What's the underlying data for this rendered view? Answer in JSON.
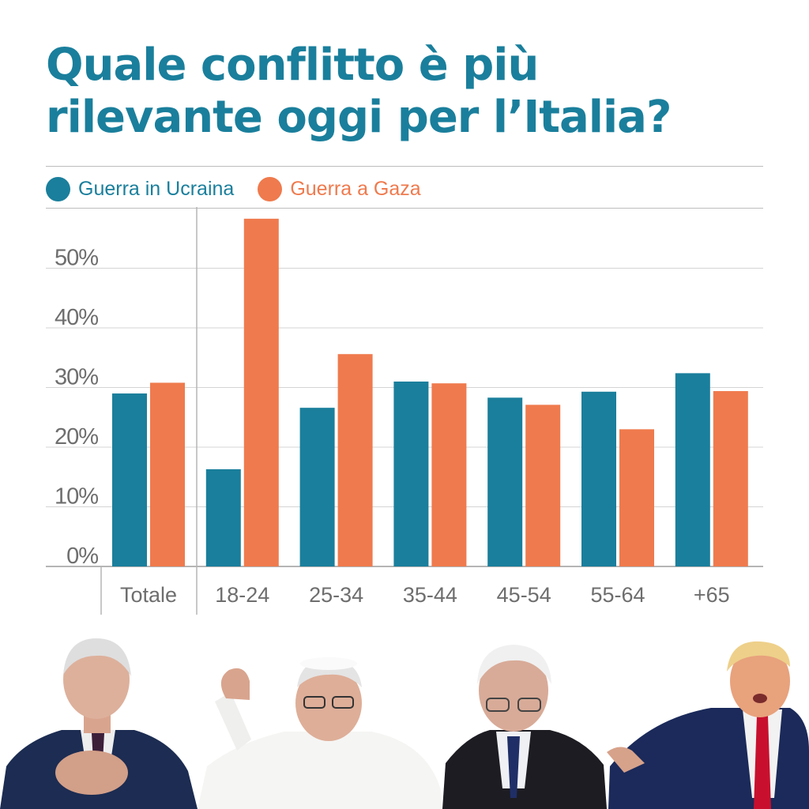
{
  "title_lines": [
    "Quale conflitto è più",
    "rilevante oggi per l’Italia?"
  ],
  "colors": {
    "title": "#1a7f9c",
    "ukraine": "#1a7f9c",
    "gaza": "#ef7a4d",
    "axis_text": "#6e6e6e",
    "grid": "#d4d4d4"
  },
  "chart_data": {
    "type": "bar",
    "title": "Quale conflitto è più rilevante oggi per l’Italia?",
    "xlabel": "",
    "ylabel": "",
    "categories": [
      "Totale",
      "18-24",
      "25-34",
      "35-44",
      "45-54",
      "55-64",
      "+65"
    ],
    "series": [
      {
        "name": "Guerra in Ucraina",
        "color": "#1a7f9c",
        "values": [
          29,
          16.3,
          26.6,
          31,
          28.3,
          29.3,
          32.4
        ]
      },
      {
        "name": "Guerra a Gaza",
        "color": "#ef7a4d",
        "values": [
          30.8,
          58.3,
          35.6,
          30.7,
          27.1,
          23,
          29.4
        ]
      }
    ],
    "y_ticks": [
      "0%",
      "10%",
      "20%",
      "30%",
      "40%",
      "50%"
    ],
    "ylim": [
      0,
      60
    ],
    "grid": true,
    "legend_position": "top-left"
  },
  "photos": [
    {
      "name": "man-in-navy-suit-head-bowed"
    },
    {
      "name": "man-in-white-cassock-waving"
    },
    {
      "name": "man-in-dark-suit-with-glasses"
    },
    {
      "name": "man-in-navy-suit-red-tie-speaking"
    }
  ]
}
